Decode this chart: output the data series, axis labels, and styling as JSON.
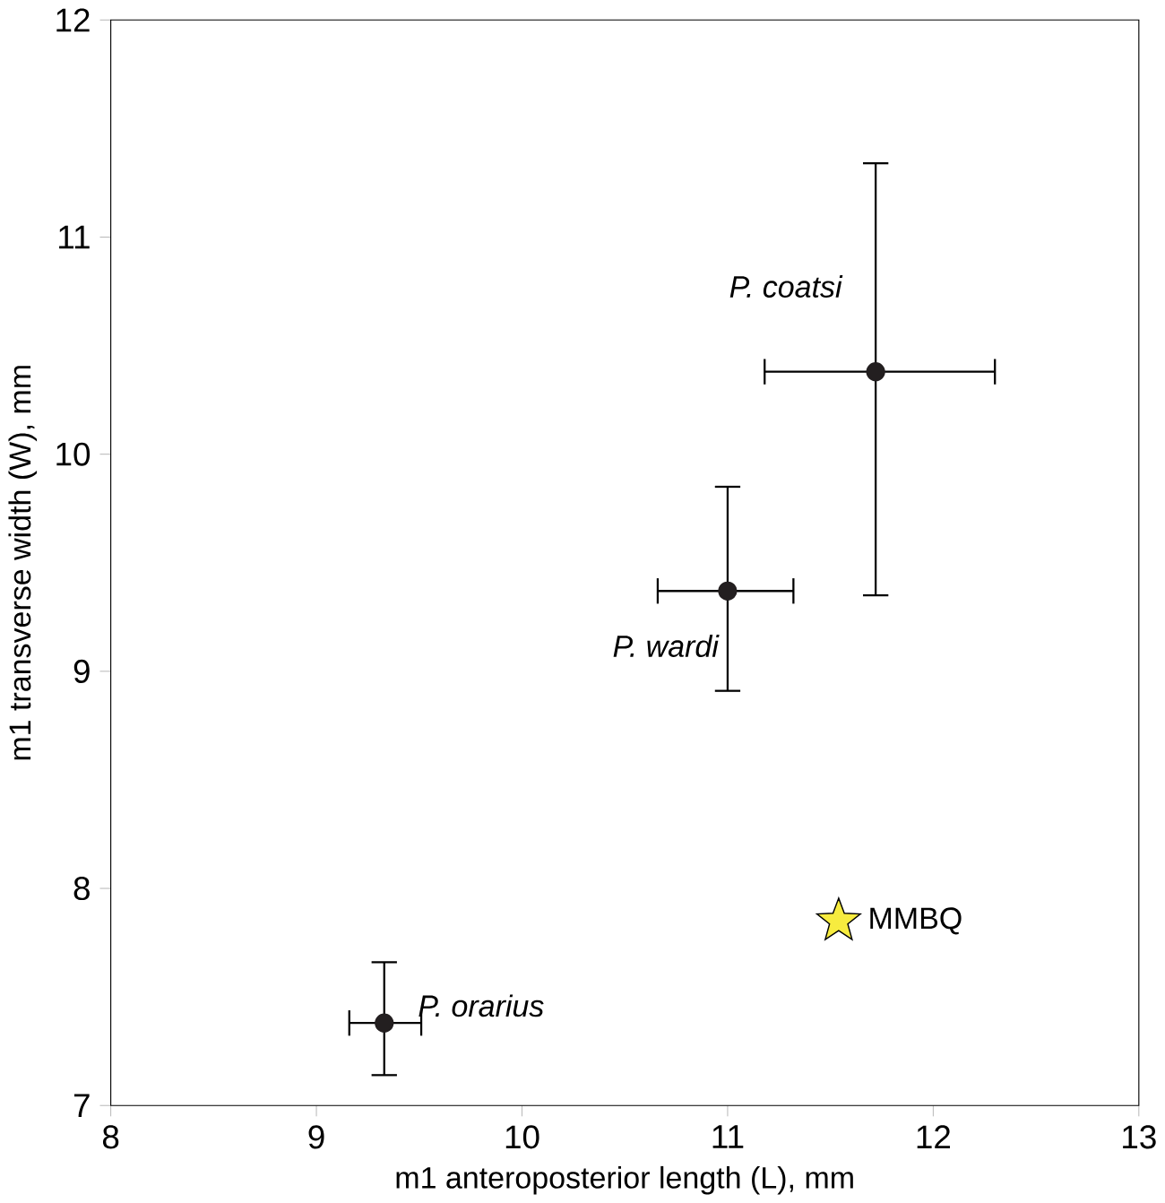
{
  "chart_data": {
    "type": "scatter",
    "xlabel": "m1 anteroposterior length (L), mm",
    "ylabel": "m1 transverse width (W), mm",
    "xlim": [
      8,
      13
    ],
    "ylim": [
      7,
      12
    ],
    "xticks": [
      8,
      9,
      10,
      11,
      12,
      13
    ],
    "yticks": [
      7,
      8,
      9,
      10,
      11,
      12
    ],
    "grid": false,
    "series": [
      {
        "color": "#231f20",
        "marker": "circle",
        "x": [
          9.33,
          11.0,
          11.72
        ],
        "values": [
          7.38,
          9.37,
          10.38
        ],
        "errors": [
          [
            7.14,
            7.66
          ],
          [
            8.91,
            9.85
          ],
          [
            9.35,
            11.34
          ]
        ],
        "xerrors": [
          [
            9.16,
            9.51
          ],
          [
            10.66,
            11.32
          ],
          [
            11.18,
            12.3
          ]
        ]
      },
      {
        "name": "MMBQ",
        "color": "#f7ec3f",
        "marker": "star",
        "x": [
          11.54
        ],
        "values": [
          7.85
        ]
      }
    ],
    "annotations": [
      {
        "text": "P. orarius",
        "x": 9.33,
        "y": 7.38
      },
      {
        "text": "P. wardi",
        "x": 11.0,
        "y": 9.37
      },
      {
        "text": "P. coatsi",
        "x": 11.72,
        "y": 10.38
      }
    ]
  }
}
